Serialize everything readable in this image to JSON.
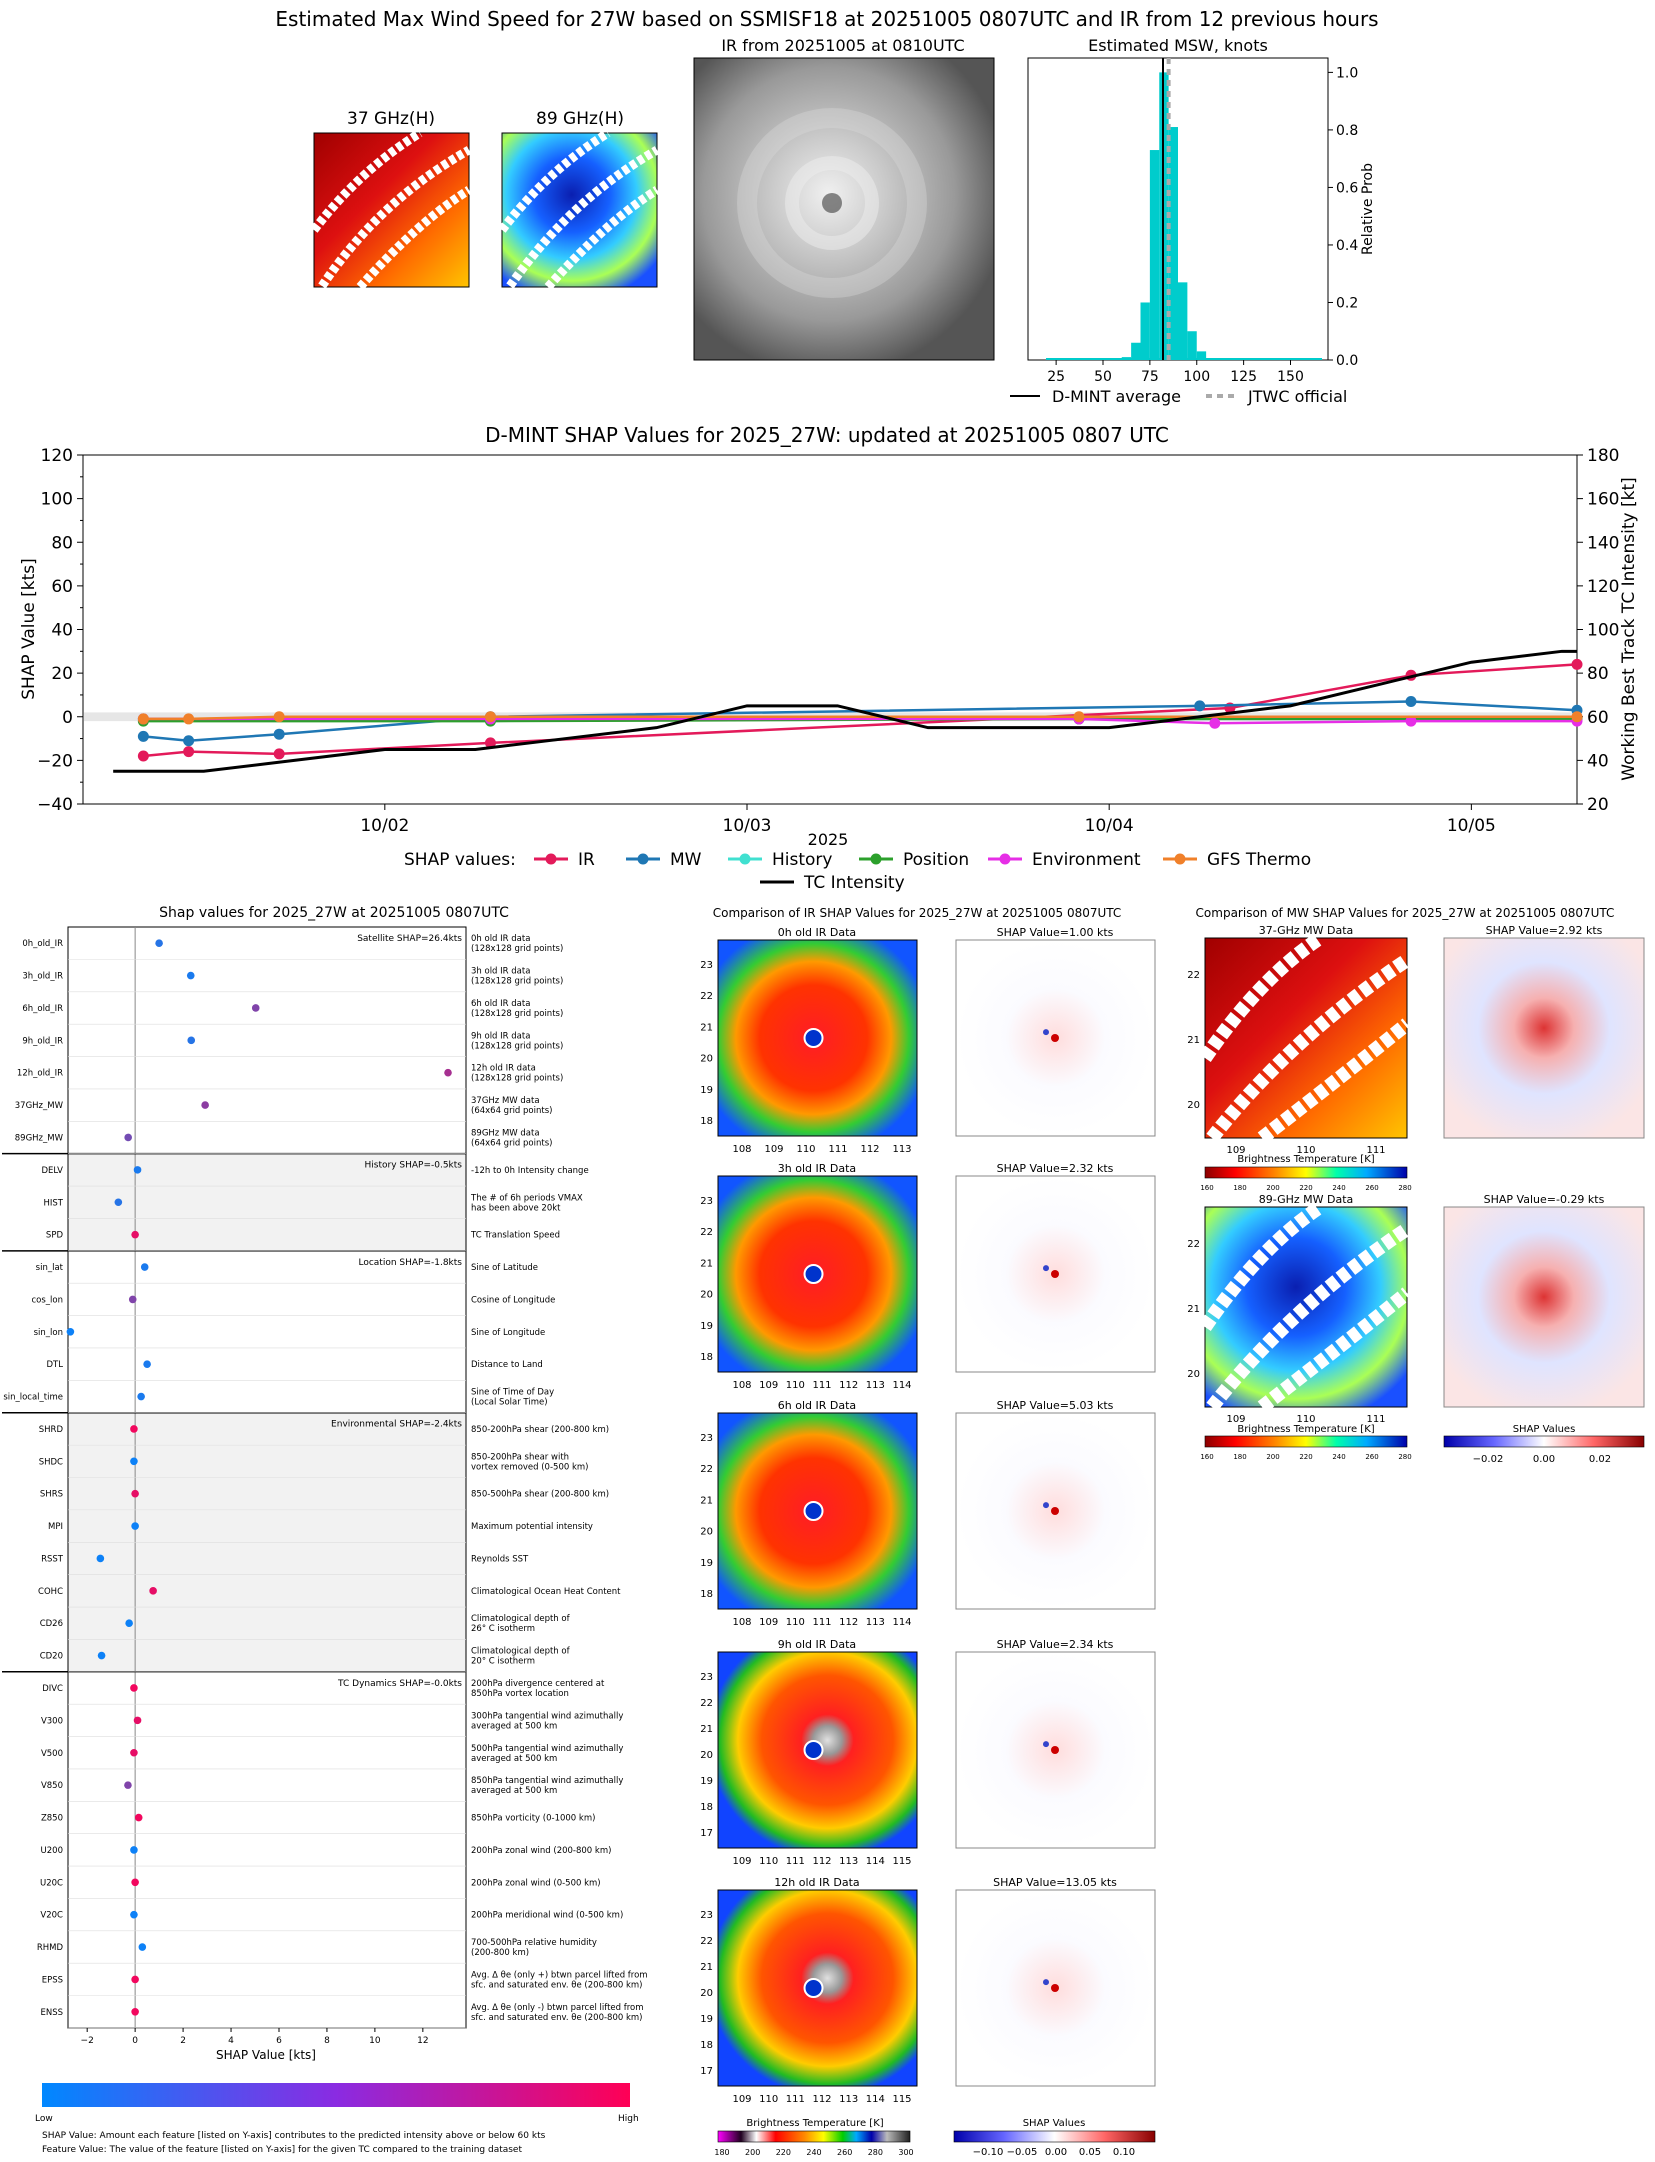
{
  "top": {
    "title": "Estimated Max Wind Speed for 27W based on SSMISF18 at 20251005 0807UTC and IR from 12 previous hours",
    "mw37_title": "37 GHz(H)",
    "mw89_title": "89 GHz(H)",
    "ir_title": "IR from 20251005 at 0810UTC",
    "hist": {
      "title": "Estimated MSW, knots",
      "ylabel": "Relative Prob",
      "xticks": [
        "25",
        "50",
        "75",
        "100",
        "125",
        "150"
      ],
      "yticks": [
        "0.0",
        "0.2",
        "0.4",
        "0.6",
        "0.8",
        "1.0"
      ],
      "legend_dmint": "D-MINT average",
      "legend_jtwc": "JTWC official"
    }
  },
  "shap_ts": {
    "title": "D-MINT SHAP Values for 2025_27W: updated at 20251005 0807 UTC",
    "ylabel_left": "SHAP Value [kts]",
    "ylabel_right": "Working Best Track TC Intensity [kt]",
    "xlabel": "2025",
    "yticks_left": [
      "120",
      "100",
      "80",
      "60",
      "40",
      "20",
      "0",
      "−20",
      "−40"
    ],
    "yticks_right": [
      "180",
      "160",
      "140",
      "120",
      "100",
      "80",
      "60",
      "40",
      "20"
    ],
    "xticks": [
      "10/02",
      "10/03",
      "10/04",
      "10/05"
    ],
    "legend_title": "SHAP values:",
    "legend": [
      "IR",
      "MW",
      "History",
      "Position",
      "Environment",
      "GFS Thermo",
      "TC Intensity"
    ]
  },
  "bee": {
    "title": "Shap values for 2025_27W at 20251005 0807UTC",
    "xlabel": "SHAP Value [kts]",
    "xticks": [
      "−2",
      "0",
      "2",
      "4",
      "6",
      "8",
      "10",
      "12"
    ],
    "groups": [
      "Satellite SHAP=26.4kts",
      "History SHAP=-0.5kts",
      "Location SHAP=-1.8kts",
      "Environmental SHAP=-2.4kts",
      "TC Dynamics SHAP=-0.0kts"
    ],
    "features": [
      {
        "name": "0h_old_IR",
        "desc": [
          "0h old IR data",
          "(128x128 grid points)"
        ]
      },
      {
        "name": "3h_old_IR",
        "desc": [
          "3h old IR data",
          "(128x128 grid points)"
        ]
      },
      {
        "name": "6h_old_IR",
        "desc": [
          "6h old IR data",
          "(128x128 grid points)"
        ]
      },
      {
        "name": "9h_old_IR",
        "desc": [
          "9h old IR data",
          "(128x128 grid points)"
        ]
      },
      {
        "name": "12h_old_IR",
        "desc": [
          "12h old IR data",
          "(128x128 grid points)"
        ]
      },
      {
        "name": "37GHz_MW",
        "desc": [
          "37GHz MW data",
          "(64x64 grid points)"
        ]
      },
      {
        "name": "89GHz_MW",
        "desc": [
          "89GHz MW data",
          "(64x64 grid points)"
        ]
      },
      {
        "name": "DELV",
        "desc": [
          "-12h to 0h Intensity change"
        ]
      },
      {
        "name": "HIST",
        "desc": [
          "The # of 6h periods VMAX",
          "has been above 20kt"
        ]
      },
      {
        "name": "SPD",
        "desc": [
          "TC Translation Speed"
        ]
      },
      {
        "name": "sin_lat",
        "desc": [
          "Sine of Latitude"
        ]
      },
      {
        "name": "cos_lon",
        "desc": [
          "Cosine of Longitude"
        ]
      },
      {
        "name": "sin_lon",
        "desc": [
          "Sine of Longitude"
        ]
      },
      {
        "name": "DTL",
        "desc": [
          "Distance to Land"
        ]
      },
      {
        "name": "sin_local_time",
        "desc": [
          "Sine of Time of Day",
          "(Local Solar Time)"
        ]
      },
      {
        "name": "SHRD",
        "desc": [
          "850-200hPa shear (200-800 km)"
        ]
      },
      {
        "name": "SHDC",
        "desc": [
          "850-200hPa shear with",
          "vortex removed (0-500 km)"
        ]
      },
      {
        "name": "SHRS",
        "desc": [
          "850-500hPa shear (200-800 km)"
        ]
      },
      {
        "name": "MPI",
        "desc": [
          "Maximum potential intensity"
        ]
      },
      {
        "name": "RSST",
        "desc": [
          "Reynolds SST"
        ]
      },
      {
        "name": "COHC",
        "desc": [
          "Climatological Ocean Heat Content"
        ]
      },
      {
        "name": "CD26",
        "desc": [
          "Climatological depth of",
          "26° C isotherm"
        ]
      },
      {
        "name": "CD20",
        "desc": [
          "Climatological depth of",
          "20° C isotherm"
        ]
      },
      {
        "name": "DIVC",
        "desc": [
          "200hPa divergence centered at",
          "850hPa vortex location"
        ]
      },
      {
        "name": "V300",
        "desc": [
          "300hPa tangential wind azimuthally",
          "averaged at 500 km"
        ]
      },
      {
        "name": "V500",
        "desc": [
          "500hPa tangential wind azimuthally",
          "averaged at 500 km"
        ]
      },
      {
        "name": "V850",
        "desc": [
          "850hPa tangential wind azimuthally",
          "averaged at 500 km"
        ]
      },
      {
        "name": "Z850",
        "desc": [
          "850hPa vorticity (0-1000 km)"
        ]
      },
      {
        "name": "U200",
        "desc": [
          "200hPa zonal wind (200-800 km)"
        ]
      },
      {
        "name": "U20C",
        "desc": [
          "200hPa zonal wind (0-500 km)"
        ]
      },
      {
        "name": "V20C",
        "desc": [
          "200hPa meridional wind (0-500 km)"
        ]
      },
      {
        "name": "RHMD",
        "desc": [
          "700-500hPa relative humidity",
          "(200-800 km)"
        ]
      },
      {
        "name": "EPSS",
        "desc": [
          "Avg. Δ θe (only +) btwn parcel lifted from",
          "sfc. and saturated env. θe (200-800 km)"
        ]
      },
      {
        "name": "ENSS",
        "desc": [
          "Avg. Δ θe (only -) btwn parcel lifted from",
          "sfc. and saturated env. θe (200-800 km)"
        ]
      }
    ],
    "cb_low": "Low",
    "cb_high": "High",
    "foot1": "SHAP Value: Amount each feature [listed on Y-axis] contributes to the predicted intensity above or below 60 kts",
    "foot2": "Feature Value: The value of the feature [listed on Y-axis] for the given TC compared to the training dataset"
  },
  "ir_cmp": {
    "title": "Comparison of IR SHAP Values for 2025_27W at 20251005 0807UTC",
    "panels": [
      {
        "label": "0h old IR Data",
        "shap": "SHAP Value=1.00 kts",
        "yticks": [
          "23",
          "22",
          "21",
          "20",
          "19",
          "18"
        ],
        "xticks": [
          "108",
          "109",
          "110",
          "111",
          "112",
          "113"
        ]
      },
      {
        "label": "3h old IR Data",
        "shap": "SHAP Value=2.32 kts",
        "yticks": [
          "23",
          "22",
          "21",
          "20",
          "19",
          "18"
        ],
        "xticks": [
          "108",
          "109",
          "110",
          "111",
          "112",
          "113",
          "114"
        ]
      },
      {
        "label": "6h old IR Data",
        "shap": "SHAP Value=5.03 kts",
        "yticks": [
          "23",
          "22",
          "21",
          "20",
          "19",
          "18"
        ],
        "xticks": [
          "108",
          "109",
          "110",
          "111",
          "112",
          "113",
          "114"
        ]
      },
      {
        "label": "9h old IR Data",
        "shap": "SHAP Value=2.34 kts",
        "yticks": [
          "23",
          "22",
          "21",
          "20",
          "19",
          "18",
          "17"
        ],
        "xticks": [
          "109",
          "110",
          "111",
          "112",
          "113",
          "114",
          "115"
        ]
      },
      {
        "label": "12h old IR Data",
        "shap": "SHAP Value=13.05 kts",
        "yticks": [
          "23",
          "22",
          "21",
          "20",
          "19",
          "18",
          "17"
        ],
        "xticks": [
          "109",
          "110",
          "111",
          "112",
          "113",
          "114",
          "115"
        ]
      }
    ],
    "cb_label": "Brightness Temperature [K]",
    "cb_ticks": [
      "180",
      "200",
      "220",
      "240",
      "260",
      "280",
      "300"
    ],
    "shap_cb_label": "SHAP Values",
    "shap_cb_ticks": [
      "−0.10",
      "−0.05",
      "0.00",
      "0.05",
      "0.10"
    ]
  },
  "mw_cmp": {
    "title": "Comparison of MW SHAP Values for 2025_27W at 20251005 0807UTC",
    "panels": [
      {
        "label": "37-GHz MW Data",
        "shap": "SHAP Value=2.92 kts"
      },
      {
        "label": "89-GHz MW Data",
        "shap": "SHAP Value=-0.29 kts"
      }
    ],
    "yticks": [
      "22",
      "21",
      "20"
    ],
    "xticks": [
      "109",
      "110",
      "111"
    ],
    "cb_label": "Brightness Temperature [K]",
    "cb_ticks": [
      "160",
      "180",
      "200",
      "220",
      "240",
      "260",
      "280"
    ],
    "shap_cb_label": "SHAP Values",
    "shap_cb_ticks": [
      "−0.02",
      "0.00",
      "0.02"
    ]
  },
  "chart_data": [
    {
      "type": "bar",
      "title": "Estimated MSW, knots",
      "ylabel": "Relative Prob",
      "xlim": [
        10,
        170
      ],
      "ylim": [
        0,
        1.05
      ],
      "bin_width": 5,
      "bins": [
        60,
        65,
        70,
        75,
        80,
        85,
        90,
        95,
        100
      ],
      "values": [
        0.01,
        0.06,
        0.2,
        0.73,
        1.0,
        0.81,
        0.27,
        0.1,
        0.03
      ],
      "dmint_average": 82,
      "jtwc_official": 85,
      "colors": {
        "bars": "#00cccc",
        "dmint": "#000000",
        "jtwc": "#aaaaaa"
      }
    },
    {
      "type": "line",
      "title": "D-MINT SHAP Values for 2025_27W: updated at 20251005 0807 UTC",
      "ylabel": "SHAP Value [kts]",
      "ylabel2": "Working Best Track TC Intensity [kt]",
      "ylim": [
        -40,
        120
      ],
      "ylim2": [
        20,
        180
      ],
      "xlim": [
        "2025-10-01T04:00",
        "2025-10-05T07:00"
      ],
      "series": [
        {
          "name": "IR",
          "color": "#e31a5a",
          "x": [
            "2025-10-01T08:00",
            "2025-10-01T11:00",
            "2025-10-01T17:00",
            "2025-10-02T07:00",
            "2025-10-04T08:00",
            "2025-10-04T20:00",
            "2025-10-05T07:00"
          ],
          "values": [
            -18,
            -16,
            -17,
            -12,
            4,
            19,
            24
          ]
        },
        {
          "name": "MW",
          "color": "#1f77b4",
          "x": [
            "2025-10-01T08:00",
            "2025-10-01T11:00",
            "2025-10-01T17:00",
            "2025-10-02T07:00",
            "2025-10-04T06:00",
            "2025-10-04T20:00",
            "2025-10-05T07:00"
          ],
          "values": [
            -9,
            -11,
            -8,
            0,
            5,
            7,
            3
          ]
        },
        {
          "name": "History",
          "color": "#40e0d0",
          "x": [
            "2025-10-01T08:00",
            "2025-10-02T07:00",
            "2025-10-03T22:00",
            "2025-10-05T07:00"
          ],
          "values": [
            -1,
            -1,
            -1,
            -1
          ]
        },
        {
          "name": "Position",
          "color": "#2ca02c",
          "x": [
            "2025-10-01T08:00",
            "2025-10-02T07:00",
            "2025-10-03T22:00",
            "2025-10-05T07:00"
          ],
          "values": [
            -2,
            -2,
            -1,
            -1
          ]
        },
        {
          "name": "Environment",
          "color": "#e62ee6",
          "x": [
            "2025-10-01T08:00",
            "2025-10-02T07:00",
            "2025-10-03T22:00",
            "2025-10-04T07:00",
            "2025-10-04T20:00",
            "2025-10-05T07:00"
          ],
          "values": [
            -1,
            -1,
            -1,
            -3,
            -2,
            -2
          ]
        },
        {
          "name": "GFS Thermo",
          "color": "#f0802a",
          "x": [
            "2025-10-01T08:00",
            "2025-10-01T11:00",
            "2025-10-01T17:00",
            "2025-10-02T07:00",
            "2025-10-03T22:00",
            "2025-10-05T07:00"
          ],
          "values": [
            -1,
            -1,
            0,
            0,
            0,
            0
          ]
        }
      ],
      "intensity": {
        "name": "TC Intensity",
        "color": "#000000",
        "x": [
          "2025-10-01T06:00",
          "2025-10-01T12:00",
          "2025-10-01T18:00",
          "2025-10-02T00:00",
          "2025-10-02T06:00",
          "2025-10-02T12:00",
          "2025-10-02T18:00",
          "2025-10-03T00:00",
          "2025-10-03T06:00",
          "2025-10-03T12:00",
          "2025-10-03T18:00",
          "2025-10-04T00:00",
          "2025-10-04T06:00",
          "2025-10-04T12:00",
          "2025-10-04T18:00",
          "2025-10-05T00:00",
          "2025-10-05T06:00",
          "2025-10-05T07:00"
        ],
        "values": [
          35,
          35,
          40,
          45,
          45,
          50,
          55,
          65,
          65,
          55,
          55,
          55,
          60,
          65,
          75,
          85,
          90,
          90
        ]
      }
    },
    {
      "type": "scatter",
      "title": "Shap values for 2025_27W at 20251005 0807UTC",
      "xlabel": "SHAP Value [kts]",
      "xlim": [
        -2.8,
        13.8
      ],
      "colormap": [
        "#0088ff",
        "#ff0055"
      ],
      "points": [
        {
          "feature": "0h_old_IR",
          "shap": 1.0,
          "feature_value": 0.15
        },
        {
          "feature": "3h_old_IR",
          "shap": 2.32,
          "feature_value": 0.1
        },
        {
          "feature": "6h_old_IR",
          "shap": 5.03,
          "feature_value": 0.5
        },
        {
          "feature": "9h_old_IR",
          "shap": 2.34,
          "feature_value": 0.15
        },
        {
          "feature": "12h_old_IR",
          "shap": 13.05,
          "feature_value": 0.65
        },
        {
          "feature": "37GHz_MW",
          "shap": 2.92,
          "feature_value": 0.55
        },
        {
          "feature": "89GHz_MW",
          "shap": -0.29,
          "feature_value": 0.45
        },
        {
          "feature": "DELV",
          "shap": 0.1,
          "feature_value": 0.1
        },
        {
          "feature": "HIST",
          "shap": -0.7,
          "feature_value": 0.15
        },
        {
          "feature": "SPD",
          "shap": 0.0,
          "feature_value": 0.9
        },
        {
          "feature": "sin_lat",
          "shap": 0.4,
          "feature_value": 0.1
        },
        {
          "feature": "cos_lon",
          "shap": -0.1,
          "feature_value": 0.5
        },
        {
          "feature": "sin_lon",
          "shap": -2.7,
          "feature_value": 0.05
        },
        {
          "feature": "DTL",
          "shap": 0.5,
          "feature_value": 0.1
        },
        {
          "feature": "sin_local_time",
          "shap": 0.25,
          "feature_value": 0.1
        },
        {
          "feature": "SHRD",
          "shap": -0.05,
          "feature_value": 0.95
        },
        {
          "feature": "SHDC",
          "shap": -0.05,
          "feature_value": 0.05
        },
        {
          "feature": "SHRS",
          "shap": 0.0,
          "feature_value": 0.9
        },
        {
          "feature": "MPI",
          "shap": 0.0,
          "feature_value": 0.05
        },
        {
          "feature": "RSST",
          "shap": -1.45,
          "feature_value": 0.05
        },
        {
          "feature": "COHC",
          "shap": 0.75,
          "feature_value": 0.9
        },
        {
          "feature": "CD26",
          "shap": -0.25,
          "feature_value": 0.05
        },
        {
          "feature": "CD20",
          "shap": -1.4,
          "feature_value": 0.05
        },
        {
          "feature": "DIVC",
          "shap": -0.05,
          "feature_value": 0.95
        },
        {
          "feature": "V300",
          "shap": 0.1,
          "feature_value": 0.9
        },
        {
          "feature": "V500",
          "shap": -0.05,
          "feature_value": 0.9
        },
        {
          "feature": "V850",
          "shap": -0.3,
          "feature_value": 0.5
        },
        {
          "feature": "Z850",
          "shap": 0.15,
          "feature_value": 0.95
        },
        {
          "feature": "U200",
          "shap": -0.05,
          "feature_value": 0.05
        },
        {
          "feature": "U20C",
          "shap": 0.0,
          "feature_value": 0.95
        },
        {
          "feature": "V20C",
          "shap": -0.05,
          "feature_value": 0.05
        },
        {
          "feature": "RHMD",
          "shap": 0.3,
          "feature_value": 0.05
        },
        {
          "feature": "EPSS",
          "shap": 0.0,
          "feature_value": 0.95
        },
        {
          "feature": "ENSS",
          "shap": 0.0,
          "feature_value": 0.95
        }
      ]
    }
  ]
}
